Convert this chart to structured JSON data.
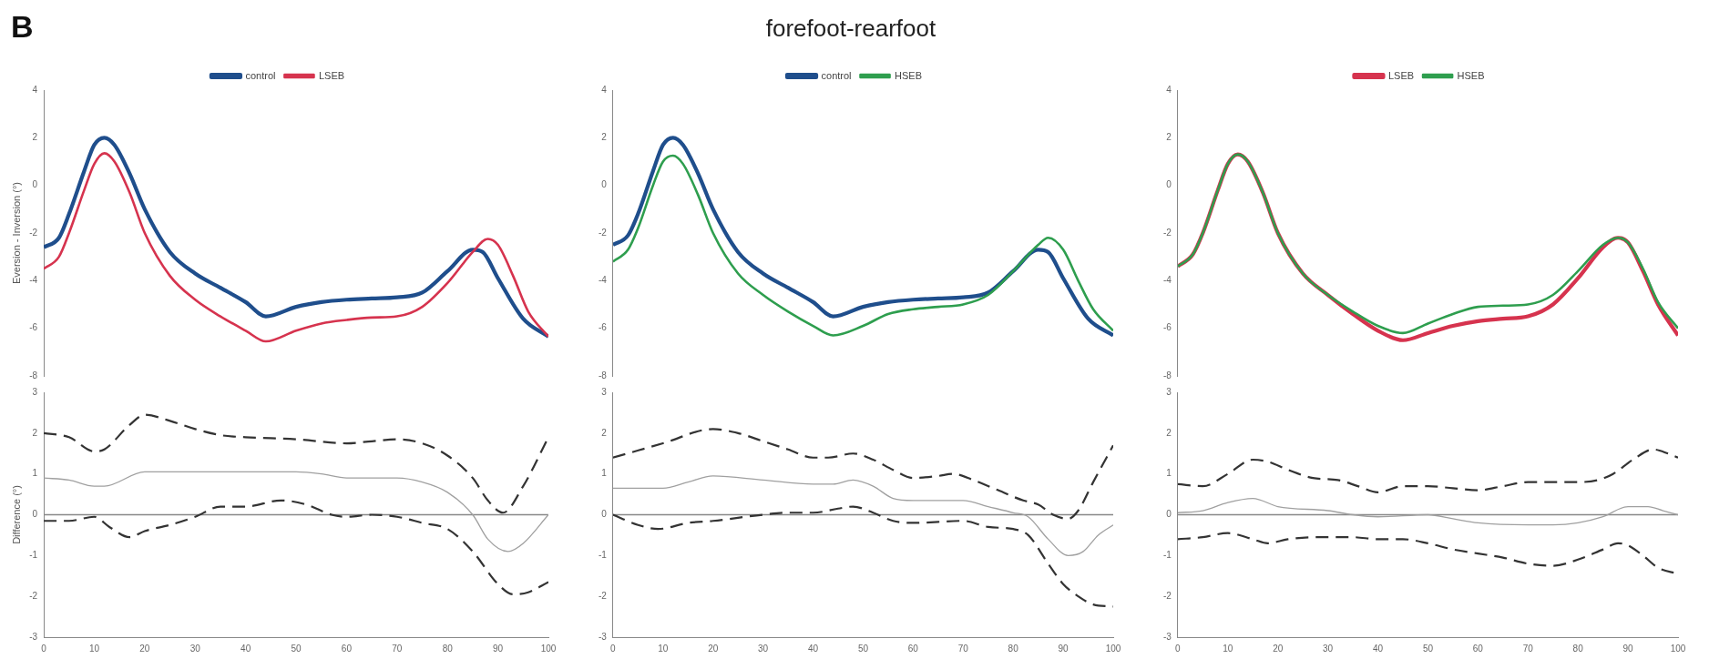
{
  "chart_data": [
    {
      "type": "line",
      "annotations": [
        "B"
      ],
      "ylabel": "Eversion - Inversion (°)",
      "xlim": [
        0,
        100
      ],
      "ylim": [
        -8,
        4
      ],
      "yticks": [
        -8,
        -6,
        -4,
        -2,
        0,
        2,
        4
      ],
      "tick_labels": "y",
      "legend": "top",
      "series": [
        {
          "name": "control",
          "color": "#1f4e8c",
          "x": [
            0,
            3,
            5,
            8,
            10,
            12,
            14,
            17,
            20,
            25,
            30,
            35,
            40,
            44,
            50,
            55,
            60,
            65,
            70,
            75,
            80,
            85,
            87,
            90,
            95,
            100
          ],
          "values": [
            -2.6,
            -2.2,
            -1.2,
            0.6,
            1.7,
            2.0,
            1.7,
            0.5,
            -1.0,
            -2.8,
            -3.7,
            -4.3,
            -4.9,
            -5.5,
            -5.1,
            -4.9,
            -4.8,
            -4.75,
            -4.7,
            -4.5,
            -3.6,
            -2.7,
            -2.8,
            -3.9,
            -5.6,
            -6.35
          ]
        },
        {
          "name": "LSEB",
          "color": "#d6334e",
          "x": [
            0,
            3,
            5,
            8,
            10,
            12,
            14,
            17,
            20,
            25,
            30,
            35,
            40,
            44,
            50,
            55,
            60,
            65,
            70,
            75,
            80,
            85,
            88,
            90,
            93,
            96,
            100
          ],
          "values": [
            -3.5,
            -3.0,
            -2.0,
            -0.2,
            0.9,
            1.35,
            1.0,
            -0.3,
            -2.0,
            -3.8,
            -4.8,
            -5.5,
            -6.1,
            -6.55,
            -6.1,
            -5.8,
            -5.65,
            -5.55,
            -5.5,
            -5.1,
            -4.1,
            -2.8,
            -2.25,
            -2.5,
            -3.8,
            -5.3,
            -6.35
          ]
        }
      ]
    },
    {
      "type": "line",
      "title": "forefoot-rearfoot",
      "xlim": [
        0,
        100
      ],
      "ylim": [
        -8,
        4
      ],
      "yticks": [
        -8,
        -6,
        -4,
        -2,
        0,
        2,
        4
      ],
      "tick_labels": "y",
      "legend": "top",
      "series": [
        {
          "name": "control",
          "color": "#1f4e8c",
          "x": [
            0,
            3,
            5,
            8,
            10,
            12,
            14,
            17,
            20,
            25,
            30,
            35,
            40,
            44,
            50,
            55,
            60,
            65,
            70,
            75,
            80,
            85,
            87,
            90,
            95,
            100
          ],
          "values": [
            -2.5,
            -2.1,
            -1.2,
            0.6,
            1.7,
            2.0,
            1.7,
            0.5,
            -1.0,
            -2.8,
            -3.7,
            -4.3,
            -4.9,
            -5.5,
            -5.1,
            -4.9,
            -4.8,
            -4.75,
            -4.7,
            -4.5,
            -3.6,
            -2.7,
            -2.8,
            -3.9,
            -5.6,
            -6.3
          ]
        },
        {
          "name": "HSEB",
          "color": "#2e9e4e",
          "x": [
            0,
            3,
            5,
            8,
            10,
            12,
            14,
            17,
            20,
            25,
            30,
            35,
            40,
            44,
            50,
            55,
            60,
            65,
            70,
            75,
            80,
            85,
            87,
            90,
            93,
            96,
            100
          ],
          "values": [
            -3.2,
            -2.7,
            -1.8,
            0,
            1.0,
            1.25,
            0.9,
            -0.4,
            -2.0,
            -3.7,
            -4.6,
            -5.3,
            -5.9,
            -6.3,
            -5.9,
            -5.4,
            -5.2,
            -5.1,
            -5.0,
            -4.6,
            -3.6,
            -2.5,
            -2.2,
            -2.7,
            -4.0,
            -5.2,
            -6.1
          ]
        }
      ]
    },
    {
      "type": "line",
      "xlim": [
        0,
        100
      ],
      "ylim": [
        -8,
        4
      ],
      "yticks": [
        -8,
        -6,
        -4,
        -2,
        0,
        2,
        4
      ],
      "tick_labels": "y",
      "legend": "top",
      "series": [
        {
          "name": "LSEB",
          "color": "#d6334e",
          "x": [
            0,
            3,
            5,
            8,
            10,
            12,
            14,
            17,
            20,
            25,
            30,
            35,
            40,
            45,
            50,
            55,
            60,
            65,
            70,
            75,
            80,
            85,
            88,
            90,
            93,
            96,
            100
          ],
          "values": [
            -3.4,
            -2.9,
            -2.0,
            -0.2,
            0.9,
            1.3,
            1.0,
            -0.3,
            -2.0,
            -3.7,
            -4.6,
            -5.4,
            -6.1,
            -6.5,
            -6.2,
            -5.9,
            -5.7,
            -5.6,
            -5.5,
            -5.0,
            -3.9,
            -2.6,
            -2.2,
            -2.4,
            -3.6,
            -5.0,
            -6.3
          ]
        },
        {
          "name": "HSEB",
          "color": "#2e9e4e",
          "x": [
            0,
            3,
            5,
            8,
            10,
            12,
            14,
            17,
            20,
            25,
            30,
            35,
            40,
            45,
            50,
            55,
            60,
            65,
            70,
            75,
            80,
            85,
            88,
            90,
            93,
            96,
            100
          ],
          "values": [
            -3.4,
            -2.9,
            -2.0,
            -0.2,
            0.9,
            1.3,
            1.0,
            -0.3,
            -2.0,
            -3.7,
            -4.6,
            -5.3,
            -5.9,
            -6.2,
            -5.8,
            -5.4,
            -5.1,
            -5.05,
            -5.0,
            -4.6,
            -3.6,
            -2.5,
            -2.2,
            -2.4,
            -3.5,
            -4.9,
            -6.0
          ]
        }
      ]
    },
    {
      "type": "line",
      "ylabel": "Difference (°)",
      "xlim": [
        0,
        100
      ],
      "xticks": [
        0,
        10,
        20,
        30,
        40,
        50,
        60,
        70,
        80,
        90,
        100
      ],
      "ylim": [
        -3,
        3
      ],
      "yticks": [
        -3,
        -2,
        -1,
        0,
        1,
        2,
        3
      ],
      "ref_lines": [
        {
          "axis": "y",
          "value": 0,
          "color": "#888888"
        }
      ],
      "series": [
        {
          "color": "#333333",
          "line_style": "dashed",
          "x": [
            0,
            5,
            10,
            12,
            17,
            20,
            25,
            30,
            35,
            40,
            50,
            60,
            65,
            70,
            75,
            80,
            85,
            88,
            91,
            95,
            100
          ],
          "values": [
            2.0,
            1.9,
            1.55,
            1.6,
            2.2,
            2.45,
            2.3,
            2.1,
            1.95,
            1.9,
            1.85,
            1.75,
            1.8,
            1.85,
            1.75,
            1.45,
            0.9,
            0.35,
            0.05,
            0.7,
            1.9
          ]
        },
        {
          "color": "#a0a0a0",
          "line_style": "solid",
          "x": [
            0,
            5,
            10,
            12,
            20,
            30,
            50,
            55,
            60,
            70,
            75,
            80,
            85,
            88,
            92,
            95,
            100
          ],
          "values": [
            0.9,
            0.85,
            0.7,
            0.7,
            1.05,
            1.05,
            1.05,
            1.0,
            0.9,
            0.9,
            0.8,
            0.55,
            0.0,
            -0.6,
            -0.9,
            -0.7,
            0.0
          ]
        },
        {
          "color": "#333333",
          "line_style": "dashed",
          "x": [
            0,
            5,
            10,
            13,
            17,
            20,
            25,
            30,
            35,
            40,
            47,
            52,
            57,
            60,
            65,
            70,
            75,
            80,
            85,
            90,
            93,
            96,
            100
          ],
          "values": [
            -0.15,
            -0.15,
            -0.05,
            -0.3,
            -0.55,
            -0.4,
            -0.25,
            -0.05,
            0.2,
            0.2,
            0.35,
            0.25,
            0.0,
            -0.05,
            0.0,
            -0.05,
            -0.2,
            -0.35,
            -0.9,
            -1.7,
            -1.95,
            -1.9,
            -1.65
          ]
        }
      ]
    },
    {
      "type": "line",
      "xlim": [
        0,
        100
      ],
      "xticks": [
        0,
        10,
        20,
        30,
        40,
        50,
        60,
        70,
        80,
        90,
        100
      ],
      "ylim": [
        -3,
        3
      ],
      "yticks": [
        -3,
        -2,
        -1,
        0,
        1,
        2,
        3
      ],
      "ref_lines": [
        {
          "axis": "y",
          "value": 0,
          "color": "#888888"
        }
      ],
      "series": [
        {
          "color": "#333333",
          "line_style": "dashed",
          "x": [
            0,
            10,
            20,
            25,
            30,
            35,
            40,
            43,
            48,
            52,
            56,
            60,
            65,
            68,
            72,
            77,
            82,
            85,
            88,
            91,
            93,
            96,
            100
          ],
          "values": [
            1.4,
            1.75,
            2.1,
            2.0,
            1.8,
            1.6,
            1.4,
            1.4,
            1.5,
            1.35,
            1.1,
            0.9,
            0.95,
            1.0,
            0.85,
            0.6,
            0.35,
            0.25,
            0.0,
            -0.1,
            0.1,
            0.8,
            1.7
          ]
        },
        {
          "color": "#a0a0a0",
          "line_style": "solid",
          "x": [
            0,
            10,
            15,
            20,
            30,
            40,
            44,
            48,
            52,
            56,
            60,
            70,
            75,
            80,
            83,
            87,
            91,
            94,
            97,
            100
          ],
          "values": [
            0.65,
            0.65,
            0.8,
            0.95,
            0.85,
            0.75,
            0.75,
            0.85,
            0.7,
            0.4,
            0.35,
            0.35,
            0.2,
            0.05,
            -0.05,
            -0.6,
            -1.0,
            -0.9,
            -0.5,
            -0.25
          ]
        },
        {
          "color": "#333333",
          "line_style": "dashed",
          "x": [
            0,
            5,
            9,
            15,
            20,
            30,
            35,
            40,
            45,
            48,
            52,
            56,
            60,
            70,
            75,
            80,
            83,
            87,
            90,
            93,
            96,
            100
          ],
          "values": [
            0.0,
            -0.25,
            -0.35,
            -0.2,
            -0.15,
            0.0,
            0.05,
            0.05,
            0.15,
            0.2,
            0.05,
            -0.15,
            -0.2,
            -0.15,
            -0.3,
            -0.35,
            -0.5,
            -1.2,
            -1.7,
            -2.0,
            -2.2,
            -2.25
          ]
        }
      ]
    },
    {
      "type": "line",
      "xlim": [
        0,
        100
      ],
      "xticks": [
        0,
        10,
        20,
        30,
        40,
        50,
        60,
        70,
        80,
        90,
        100
      ],
      "ylim": [
        -3,
        3
      ],
      "yticks": [
        -3,
        -2,
        -1,
        0,
        1,
        2,
        3
      ],
      "ref_lines": [
        {
          "axis": "y",
          "value": 0,
          "color": "#888888"
        }
      ],
      "series": [
        {
          "color": "#333333",
          "line_style": "dashed",
          "x": [
            0,
            5,
            10,
            15,
            18,
            22,
            27,
            32,
            36,
            40,
            45,
            50,
            55,
            60,
            65,
            70,
            80,
            84,
            87,
            91,
            95,
            98,
            100
          ],
          "values": [
            0.75,
            0.7,
            1.0,
            1.35,
            1.3,
            1.1,
            0.9,
            0.85,
            0.7,
            0.55,
            0.7,
            0.7,
            0.65,
            0.6,
            0.7,
            0.8,
            0.8,
            0.85,
            1.0,
            1.35,
            1.6,
            1.5,
            1.4
          ]
        },
        {
          "color": "#a0a0a0",
          "line_style": "solid",
          "x": [
            0,
            5,
            10,
            15,
            20,
            30,
            35,
            40,
            50,
            55,
            60,
            70,
            75,
            80,
            85,
            90,
            94,
            97,
            100
          ],
          "values": [
            0.05,
            0.1,
            0.3,
            0.4,
            0.2,
            0.1,
            0.0,
            -0.05,
            0.0,
            -0.1,
            -0.2,
            -0.25,
            -0.25,
            -0.2,
            -0.05,
            0.2,
            0.2,
            0.1,
            0.0
          ]
        },
        {
          "color": "#333333",
          "line_style": "dashed",
          "x": [
            0,
            5,
            10,
            15,
            18,
            22,
            28,
            35,
            40,
            45,
            50,
            55,
            60,
            65,
            70,
            75,
            80,
            85,
            88,
            90,
            93,
            96,
            100
          ],
          "values": [
            -0.6,
            -0.55,
            -0.45,
            -0.6,
            -0.7,
            -0.6,
            -0.55,
            -0.55,
            -0.6,
            -0.6,
            -0.7,
            -0.85,
            -0.95,
            -1.05,
            -1.2,
            -1.25,
            -1.1,
            -0.85,
            -0.7,
            -0.75,
            -1.0,
            -1.3,
            -1.45
          ]
        }
      ]
    }
  ]
}
